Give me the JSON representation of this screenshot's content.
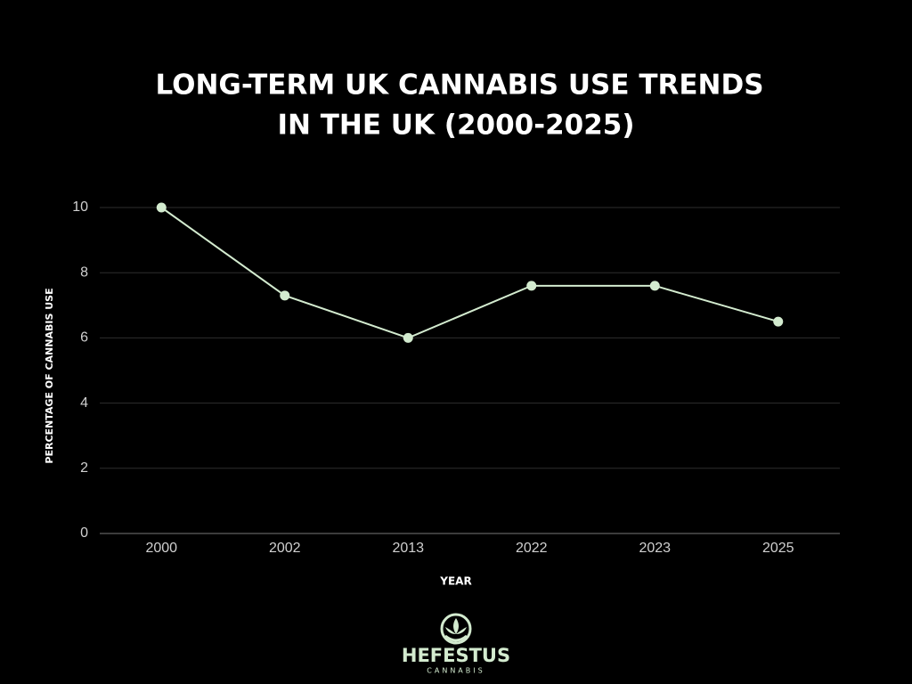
{
  "chart_data": {
    "type": "line",
    "title": [
      "LONG-TERM UK CANNABIS USE TRENDS",
      "IN THE UK (2000-2025)"
    ],
    "x_label": "YEAR",
    "y_label": "PERCENTAGE OF CANNABIS USE",
    "categories": [
      "2000",
      "2002",
      "2013",
      "2022",
      "2023",
      "2025"
    ],
    "values": [
      10,
      7.3,
      6.0,
      7.6,
      7.6,
      6.5
    ],
    "color": "#d3ebcf",
    "ylim": [
      0,
      10
    ],
    "yticks": [
      0,
      2,
      4,
      6,
      8,
      10
    ],
    "grid": true
  },
  "logo": {
    "name": "HEFESTUS",
    "tagline": "CANNABIS"
  }
}
